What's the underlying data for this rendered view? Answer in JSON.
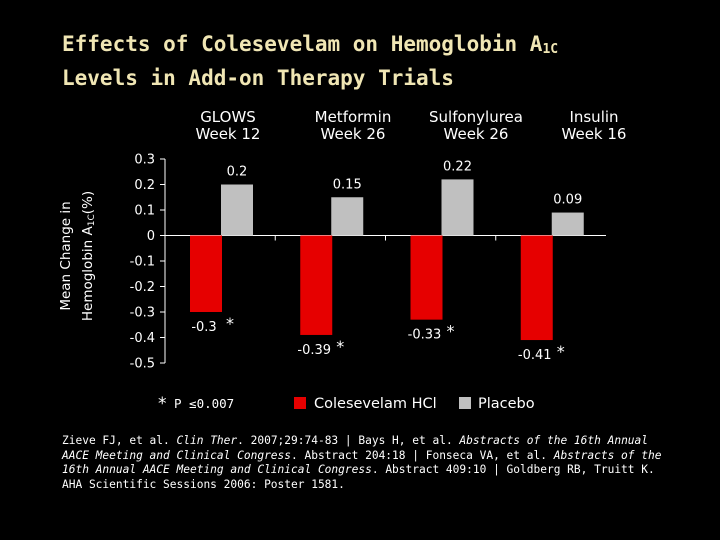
{
  "title": {
    "line1_main": "Effects of Colesevelam on Hemoglobin A",
    "line1_sub": "1C",
    "line2": "Levels in Add-on Therapy Trials"
  },
  "colors": {
    "colesevelam": "#e60000",
    "placebo": "#c0c0c0",
    "axis": "#ffffff",
    "title": "#f0e6b4"
  },
  "chart_data": {
    "type": "bar",
    "ylabel_line1": "Mean Change in",
    "ylabel_line2_main": "Hemoglobin A",
    "ylabel_line2_sub": "1C",
    "ylabel_line2_tail": "(%)",
    "ylim": [
      -0.5,
      0.3
    ],
    "yticks": [
      "0.3",
      "0.2",
      "0.1",
      "0",
      "-0.1",
      "-0.2",
      "-0.3",
      "-0.4",
      "-0.5"
    ],
    "ytick_values": [
      0.3,
      0.2,
      0.1,
      0,
      -0.1,
      -0.2,
      -0.3,
      -0.4,
      -0.5
    ],
    "categories": [
      {
        "line1": "GLOWS",
        "line2": "Week 12"
      },
      {
        "line1": "Metformin",
        "line2": "Week 26"
      },
      {
        "line1": "Sulfonylurea",
        "line2": "Week 26"
      },
      {
        "line1": "Insulin",
        "line2": "Week 16"
      }
    ],
    "series": [
      {
        "name": "Colesevelam HCl",
        "values": [
          -0.3,
          -0.39,
          -0.33,
          -0.41
        ],
        "labels": [
          "-0.3",
          "-0.39",
          "-0.33",
          "-0.41"
        ],
        "significance": [
          "*",
          "*",
          "*",
          "*"
        ]
      },
      {
        "name": "Placebo",
        "values": [
          0.2,
          0.15,
          0.22,
          0.09
        ],
        "labels": [
          "0.2",
          "0.15",
          "0.22",
          "0.09"
        ]
      }
    ],
    "footnote_star": "*",
    "footnote_text": "P ≤0.007",
    "legend_placement": "bottom"
  },
  "references": {
    "r1a": "Zieve FJ, et al. ",
    "r1j": "Clin Ther",
    "r1b": ". 2007;29:74-83 | Bays H, et al. ",
    "r2j": "Abstracts of the 16th Annual AACE Meeting and Clinical Congress",
    "r2b": ". Abstract 204:18 | Fonseca VA, et al. ",
    "r3j": "Abstracts of the 16th Annual AACE Meeting and Clinical Congress",
    "r3b": ". Abstract 409:10 | Goldberg RB, Truitt K. AHA Scientific Sessions 2006: Poster 1581."
  }
}
